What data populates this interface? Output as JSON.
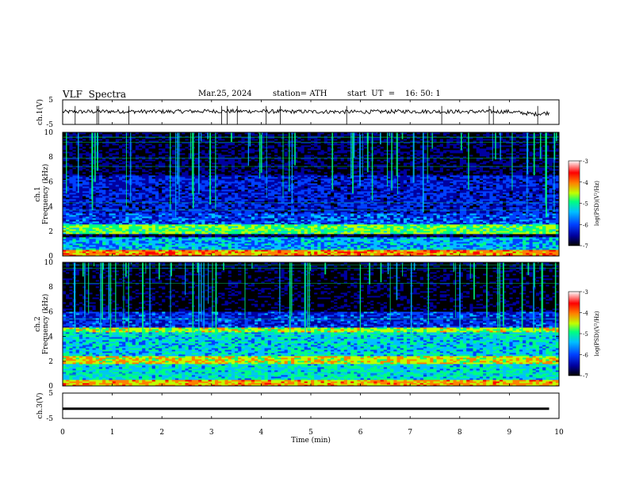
{
  "header": {
    "title": "VLF  Spectra",
    "date": "Mar.25, 2024",
    "station": "station= ATH",
    "start_ut": "start  UT  =    16: 50: 1"
  },
  "chart_data": [
    {
      "type": "line",
      "name": "ch1-waveform",
      "ylabel": "ch.1(V)",
      "ylim": [
        -5,
        5
      ],
      "yticks": [
        "5",
        "-5"
      ],
      "xlim": [
        0,
        10
      ],
      "trace_approx": {
        "x": [
          0,
          1,
          2,
          3,
          4,
          5,
          6,
          7,
          8,
          9,
          9.3,
          9.5,
          9.8
        ],
        "y": [
          0.1,
          0.3,
          0.2,
          0.4,
          0.3,
          0.2,
          0.1,
          0.3,
          0.2,
          0.2,
          -0.4,
          -0.8,
          -0.3
        ]
      }
    },
    {
      "type": "heatmap",
      "name": "ch1-spectrogram",
      "ylabel": "ch.1\nFrequency (kHz)",
      "ylabel_lines": [
        "ch.1",
        "Frequency (kHz)"
      ],
      "ylim": [
        0,
        10
      ],
      "yticks": [
        "0",
        "2",
        "4",
        "6",
        "8",
        "10"
      ],
      "xlim": [
        0,
        9.8
      ],
      "colorbar": {
        "label": "log(PSD)(V²/Hz)",
        "ticks": [
          "-3",
          "-4",
          "-5",
          "-6",
          "-7"
        ],
        "range": [
          -7,
          -3
        ],
        "colors": [
          "#000000",
          "#0000a0",
          "#0040ff",
          "#00c0ff",
          "#00ff80",
          "#c0ff00",
          "#ff8000",
          "#ff0000",
          "#ffffff"
        ]
      },
      "bands_khz": [
        {
          "f": [
            0,
            0.5
          ],
          "level": -4.0
        },
        {
          "f": [
            0.5,
            1.5
          ],
          "level": -5.6
        },
        {
          "f": [
            1.8,
            2.6
          ],
          "level": -4.8
        },
        {
          "f": [
            2.6,
            3.5
          ],
          "level": -6.0
        },
        {
          "f": [
            3.5,
            6.5
          ],
          "level": -6.3
        },
        {
          "f": [
            6.5,
            10
          ],
          "level": -6.8
        }
      ]
    },
    {
      "type": "heatmap",
      "name": "ch2-spectrogram",
      "ylabel": "ch.2\nFrequency (kHz)",
      "ylabel_lines": [
        "ch.2",
        "Frequency (kHz)"
      ],
      "ylim": [
        0,
        10
      ],
      "yticks": [
        "0",
        "2",
        "4",
        "6",
        "8",
        "10"
      ],
      "xlim": [
        0,
        9.8
      ],
      "colorbar": {
        "label": "log(PSD)(V²/Hz)",
        "ticks": [
          "-3",
          "-4",
          "-5",
          "-6",
          "-7"
        ],
        "range": [
          -7,
          -3
        ]
      },
      "bands_khz": [
        {
          "f": [
            0,
            0.5
          ],
          "level": -4.2
        },
        {
          "f": [
            0.5,
            1.8
          ],
          "level": -5.3
        },
        {
          "f": [
            1.8,
            2.5
          ],
          "level": -4.4
        },
        {
          "f": [
            2.5,
            4.3
          ],
          "level": -5.4
        },
        {
          "f": [
            4.3,
            4.7
          ],
          "level": -4.6
        },
        {
          "f": [
            4.7,
            6.0
          ],
          "level": -6.2
        },
        {
          "f": [
            6.0,
            10
          ],
          "level": -7.0
        }
      ]
    },
    {
      "type": "line",
      "name": "ch3-waveform",
      "ylabel": "ch.3(V)",
      "ylim": [
        -5,
        5
      ],
      "yticks": [
        "5",
        "-5"
      ],
      "xlim": [
        0,
        10
      ],
      "xlabel": "Time  (min)",
      "xticks": [
        "0",
        "1",
        "2",
        "3",
        "4",
        "5",
        "6",
        "7",
        "8",
        "9",
        "10"
      ],
      "trace_approx": {
        "x": [
          0,
          9.8
        ],
        "y": [
          -1.2,
          -1.2
        ]
      }
    }
  ]
}
